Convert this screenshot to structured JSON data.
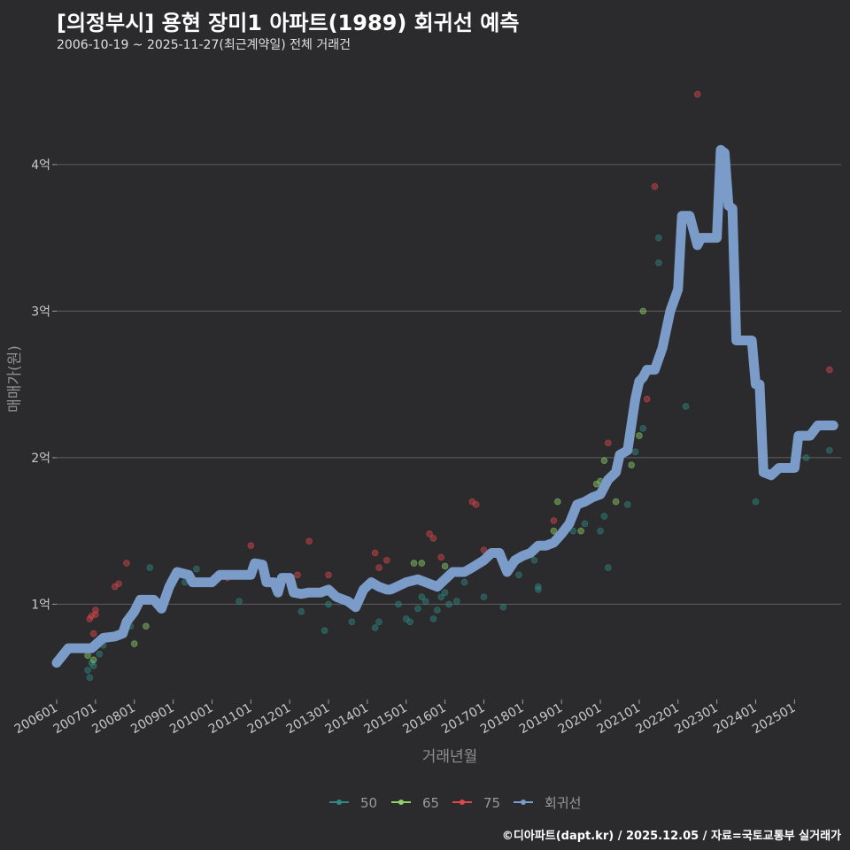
{
  "header": {
    "title": "[의정부시] 용현 장미1 아파트(1989) 회귀선 예측",
    "subtitle": "2006-10-19 ~ 2025-11-27(최근계약일) 전체 거래건"
  },
  "footer": {
    "credit": "©디아파트(dapt.kr) / 2025.12.05 / 자료=국토교통부 실거래가"
  },
  "chart_data": {
    "type": "scatter",
    "title": "[의정부시] 용현 장미1 아파트(1989) 회귀선 예측",
    "xlabel": "거래년월",
    "ylabel": "매매가(원)",
    "xlim": [
      2006.0,
      2026.2
    ],
    "ylim": [
      0.35,
      4.7
    ],
    "x_ticks": [
      {
        "v": 2006.0,
        "label": "200601"
      },
      {
        "v": 2007.0,
        "label": "200701"
      },
      {
        "v": 2008.0,
        "label": "200801"
      },
      {
        "v": 2009.0,
        "label": "200901"
      },
      {
        "v": 2010.0,
        "label": "201001"
      },
      {
        "v": 2011.0,
        "label": "201101"
      },
      {
        "v": 2012.0,
        "label": "201201"
      },
      {
        "v": 2013.0,
        "label": "201301"
      },
      {
        "v": 2014.0,
        "label": "201401"
      },
      {
        "v": 2015.0,
        "label": "201501"
      },
      {
        "v": 2016.0,
        "label": "201601"
      },
      {
        "v": 2017.0,
        "label": "201701"
      },
      {
        "v": 2018.0,
        "label": "201801"
      },
      {
        "v": 2019.0,
        "label": "201901"
      },
      {
        "v": 2020.0,
        "label": "202001"
      },
      {
        "v": 2021.0,
        "label": "202101"
      },
      {
        "v": 2022.0,
        "label": "202201"
      },
      {
        "v": 2023.0,
        "label": "202301"
      },
      {
        "v": 2024.0,
        "label": "202401"
      },
      {
        "v": 2025.0,
        "label": "202501"
      }
    ],
    "y_ticks": [
      {
        "v": 1,
        "label": "1억"
      },
      {
        "v": 2,
        "label": "2억"
      },
      {
        "v": 3,
        "label": "3억"
      },
      {
        "v": 4,
        "label": "4억"
      }
    ],
    "colors": {
      "50": "#2e8a82",
      "65": "#8fd16a",
      "75": "#e0474c",
      "regression": "#7b9cc8"
    },
    "legend": [
      {
        "key": "50",
        "label": "50"
      },
      {
        "key": "65",
        "label": "65"
      },
      {
        "key": "75",
        "label": "75"
      },
      {
        "key": "regression",
        "label": "회귀선"
      }
    ],
    "series": [
      {
        "name": "50",
        "points": [
          [
            2006.8,
            0.55
          ],
          [
            2006.85,
            0.5
          ],
          [
            2006.9,
            0.6
          ],
          [
            2006.95,
            0.58
          ],
          [
            2007.1,
            0.66
          ],
          [
            2007.2,
            0.72
          ],
          [
            2007.9,
            0.85
          ],
          [
            2008.4,
            1.25
          ],
          [
            2009.3,
            1.15
          ],
          [
            2009.6,
            1.24
          ],
          [
            2010.7,
            1.02
          ],
          [
            2011.5,
            1.16
          ],
          [
            2011.9,
            1.18
          ],
          [
            2012.3,
            0.95
          ],
          [
            2012.9,
            0.82
          ],
          [
            2013.0,
            1.0
          ],
          [
            2013.6,
            0.88
          ],
          [
            2014.2,
            0.84
          ],
          [
            2014.3,
            0.88
          ],
          [
            2014.8,
            1.0
          ],
          [
            2015.0,
            0.9
          ],
          [
            2015.1,
            0.88
          ],
          [
            2015.3,
            0.97
          ],
          [
            2015.4,
            1.05
          ],
          [
            2015.5,
            1.02
          ],
          [
            2015.7,
            0.9
          ],
          [
            2015.8,
            0.96
          ],
          [
            2015.9,
            1.05
          ],
          [
            2016.0,
            1.08
          ],
          [
            2016.1,
            1.0
          ],
          [
            2016.3,
            1.02
          ],
          [
            2016.5,
            1.15
          ],
          [
            2017.0,
            1.05
          ],
          [
            2017.5,
            0.98
          ],
          [
            2017.9,
            1.2
          ],
          [
            2018.3,
            1.3
          ],
          [
            2018.4,
            1.12
          ],
          [
            2018.4,
            1.1
          ],
          [
            2019.0,
            1.5
          ],
          [
            2019.3,
            1.5
          ],
          [
            2019.6,
            1.55
          ],
          [
            2020.0,
            1.5
          ],
          [
            2020.1,
            1.6
          ],
          [
            2020.2,
            1.25
          ],
          [
            2020.7,
            1.68
          ],
          [
            2020.9,
            2.04
          ],
          [
            2021.1,
            2.2
          ],
          [
            2021.5,
            3.33
          ],
          [
            2021.5,
            3.5
          ],
          [
            2022.2,
            2.35
          ],
          [
            2024.0,
            1.7
          ],
          [
            2025.3,
            2.0
          ],
          [
            2025.9,
            2.05
          ]
        ]
      },
      {
        "name": "65",
        "points": [
          [
            2006.8,
            0.65
          ],
          [
            2006.95,
            0.62
          ],
          [
            2008.0,
            0.73
          ],
          [
            2008.3,
            0.85
          ],
          [
            2015.2,
            1.28
          ],
          [
            2015.4,
            1.28
          ],
          [
            2016.0,
            1.26
          ],
          [
            2018.8,
            1.5
          ],
          [
            2018.9,
            1.7
          ],
          [
            2019.5,
            1.5
          ],
          [
            2019.9,
            1.82
          ],
          [
            2020.0,
            1.84
          ],
          [
            2020.1,
            1.98
          ],
          [
            2020.4,
            1.7
          ],
          [
            2020.8,
            1.95
          ],
          [
            2021.0,
            2.15
          ],
          [
            2021.1,
            3.0
          ]
        ]
      },
      {
        "name": "75",
        "points": [
          [
            2006.85,
            0.9
          ],
          [
            2006.9,
            0.92
          ],
          [
            2007.0,
            0.93
          ],
          [
            2007.0,
            0.96
          ],
          [
            2006.95,
            0.8
          ],
          [
            2007.5,
            1.12
          ],
          [
            2007.6,
            1.14
          ],
          [
            2007.8,
            1.28
          ],
          [
            2010.4,
            1.18
          ],
          [
            2011.0,
            1.4
          ],
          [
            2012.2,
            1.2
          ],
          [
            2012.5,
            1.43
          ],
          [
            2013.0,
            1.2
          ],
          [
            2014.2,
            1.35
          ],
          [
            2014.3,
            1.25
          ],
          [
            2014.5,
            1.3
          ],
          [
            2015.6,
            1.48
          ],
          [
            2015.7,
            1.45
          ],
          [
            2015.9,
            1.32
          ],
          [
            2016.7,
            1.7
          ],
          [
            2016.8,
            1.68
          ],
          [
            2017.0,
            1.37
          ],
          [
            2018.8,
            1.57
          ],
          [
            2020.1,
            1.8
          ],
          [
            2020.2,
            2.1
          ],
          [
            2021.2,
            2.4
          ],
          [
            2021.4,
            3.85
          ],
          [
            2022.5,
            4.48
          ],
          [
            2025.9,
            2.6
          ]
        ]
      }
    ],
    "regression": [
      [
        2006.0,
        0.6
      ],
      [
        2006.3,
        0.7
      ],
      [
        2006.6,
        0.7
      ],
      [
        2006.9,
        0.7
      ],
      [
        2007.2,
        0.77
      ],
      [
        2007.5,
        0.78
      ],
      [
        2007.7,
        0.8
      ],
      [
        2007.8,
        0.88
      ],
      [
        2008.0,
        0.95
      ],
      [
        2008.15,
        1.03
      ],
      [
        2008.5,
        1.03
      ],
      [
        2008.7,
        0.97
      ],
      [
        2008.9,
        1.12
      ],
      [
        2009.1,
        1.22
      ],
      [
        2009.4,
        1.2
      ],
      [
        2009.5,
        1.15
      ],
      [
        2009.7,
        1.15
      ],
      [
        2010.0,
        1.15
      ],
      [
        2010.2,
        1.2
      ],
      [
        2010.5,
        1.2
      ],
      [
        2010.8,
        1.2
      ],
      [
        2011.0,
        1.2
      ],
      [
        2011.1,
        1.28
      ],
      [
        2011.3,
        1.27
      ],
      [
        2011.4,
        1.15
      ],
      [
        2011.6,
        1.15
      ],
      [
        2011.7,
        1.08
      ],
      [
        2011.8,
        1.18
      ],
      [
        2012.0,
        1.18
      ],
      [
        2012.1,
        1.08
      ],
      [
        2012.3,
        1.07
      ],
      [
        2012.5,
        1.08
      ],
      [
        2012.8,
        1.08
      ],
      [
        2013.0,
        1.1
      ],
      [
        2013.2,
        1.05
      ],
      [
        2013.5,
        1.02
      ],
      [
        2013.7,
        0.98
      ],
      [
        2013.9,
        1.1
      ],
      [
        2014.1,
        1.15
      ],
      [
        2014.3,
        1.12
      ],
      [
        2014.5,
        1.1
      ],
      [
        2014.6,
        1.1
      ],
      [
        2015.0,
        1.15
      ],
      [
        2015.3,
        1.17
      ],
      [
        2015.5,
        1.15
      ],
      [
        2015.8,
        1.12
      ],
      [
        2016.0,
        1.17
      ],
      [
        2016.2,
        1.22
      ],
      [
        2016.5,
        1.22
      ],
      [
        2016.7,
        1.25
      ],
      [
        2017.0,
        1.3
      ],
      [
        2017.2,
        1.35
      ],
      [
        2017.4,
        1.35
      ],
      [
        2017.6,
        1.22
      ],
      [
        2017.8,
        1.3
      ],
      [
        2018.0,
        1.33
      ],
      [
        2018.2,
        1.35
      ],
      [
        2018.4,
        1.4
      ],
      [
        2018.6,
        1.4
      ],
      [
        2018.8,
        1.42
      ],
      [
        2019.0,
        1.48
      ],
      [
        2019.2,
        1.55
      ],
      [
        2019.4,
        1.68
      ],
      [
        2019.6,
        1.7
      ],
      [
        2019.8,
        1.73
      ],
      [
        2020.0,
        1.75
      ],
      [
        2020.2,
        1.85
      ],
      [
        2020.4,
        1.9
      ],
      [
        2020.5,
        2.02
      ],
      [
        2020.7,
        2.05
      ],
      [
        2020.9,
        2.4
      ],
      [
        2021.0,
        2.52
      ],
      [
        2021.1,
        2.55
      ],
      [
        2021.2,
        2.6
      ],
      [
        2021.4,
        2.6
      ],
      [
        2021.6,
        2.75
      ],
      [
        2021.8,
        3.0
      ],
      [
        2022.0,
        3.15
      ],
      [
        2022.1,
        3.65
      ],
      [
        2022.3,
        3.65
      ],
      [
        2022.5,
        3.45
      ],
      [
        2022.6,
        3.5
      ],
      [
        2022.8,
        3.5
      ],
      [
        2023.0,
        3.5
      ],
      [
        2023.1,
        4.1
      ],
      [
        2023.2,
        4.08
      ],
      [
        2023.3,
        3.72
      ],
      [
        2023.4,
        3.7
      ],
      [
        2023.5,
        2.8
      ],
      [
        2023.7,
        2.8
      ],
      [
        2023.9,
        2.8
      ],
      [
        2024.0,
        2.5
      ],
      [
        2024.1,
        2.5
      ],
      [
        2024.2,
        1.9
      ],
      [
        2024.4,
        1.88
      ],
      [
        2024.6,
        1.93
      ],
      [
        2024.8,
        1.93
      ],
      [
        2025.0,
        1.93
      ],
      [
        2025.1,
        2.15
      ],
      [
        2025.4,
        2.15
      ],
      [
        2025.6,
        2.22
      ],
      [
        2025.9,
        2.22
      ],
      [
        2026.0,
        2.22
      ]
    ]
  }
}
